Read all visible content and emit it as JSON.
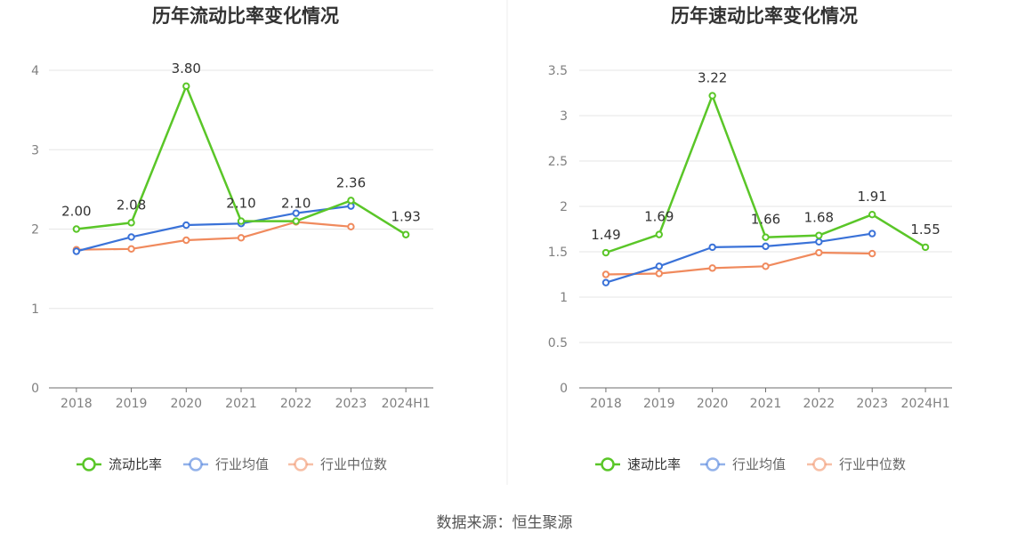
{
  "source": "数据来源：恒生聚源",
  "colors": {
    "main": "#5ac628",
    "avg": "#3a72d8",
    "median": "#f08a5d"
  },
  "chart_data": [
    {
      "type": "line",
      "title": "历年流动比率变化情况",
      "categories": [
        "2018",
        "2019",
        "2020",
        "2021",
        "2022",
        "2023",
        "2024H1"
      ],
      "ylim": [
        0,
        4
      ],
      "yticks": [
        "0",
        "1",
        "2",
        "3",
        "4"
      ],
      "legend_position": "bottom-center",
      "series": [
        {
          "name": "流动比率",
          "values": [
            2.0,
            2.08,
            3.8,
            2.1,
            2.1,
            2.36,
            1.93
          ],
          "labels": [
            "2.00",
            "2.08",
            "3.80",
            "2.10",
            "2.10",
            "2.36",
            "1.93"
          ]
        },
        {
          "name": "行业均值",
          "values": [
            1.72,
            1.9,
            2.05,
            2.07,
            2.2,
            2.29,
            null
          ]
        },
        {
          "name": "行业中位数",
          "values": [
            1.74,
            1.75,
            1.86,
            1.89,
            2.09,
            2.03,
            null
          ]
        }
      ]
    },
    {
      "type": "line",
      "title": "历年速动比率变化情况",
      "categories": [
        "2018",
        "2019",
        "2020",
        "2021",
        "2022",
        "2023",
        "2024H1"
      ],
      "ylim": [
        0,
        3.5
      ],
      "yticks": [
        "0",
        "0.5",
        "1",
        "1.5",
        "2",
        "2.5",
        "3",
        "3.5"
      ],
      "legend_position": "bottom-center",
      "series": [
        {
          "name": "速动比率",
          "values": [
            1.49,
            1.69,
            3.22,
            1.66,
            1.68,
            1.91,
            1.55
          ],
          "labels": [
            "1.49",
            "1.69",
            "3.22",
            "1.66",
            "1.68",
            "1.91",
            "1.55"
          ]
        },
        {
          "name": "行业均值",
          "values": [
            1.16,
            1.34,
            1.55,
            1.56,
            1.61,
            1.7,
            null
          ]
        },
        {
          "name": "行业中位数",
          "values": [
            1.25,
            1.26,
            1.32,
            1.34,
            1.49,
            1.48,
            null
          ]
        }
      ]
    }
  ]
}
